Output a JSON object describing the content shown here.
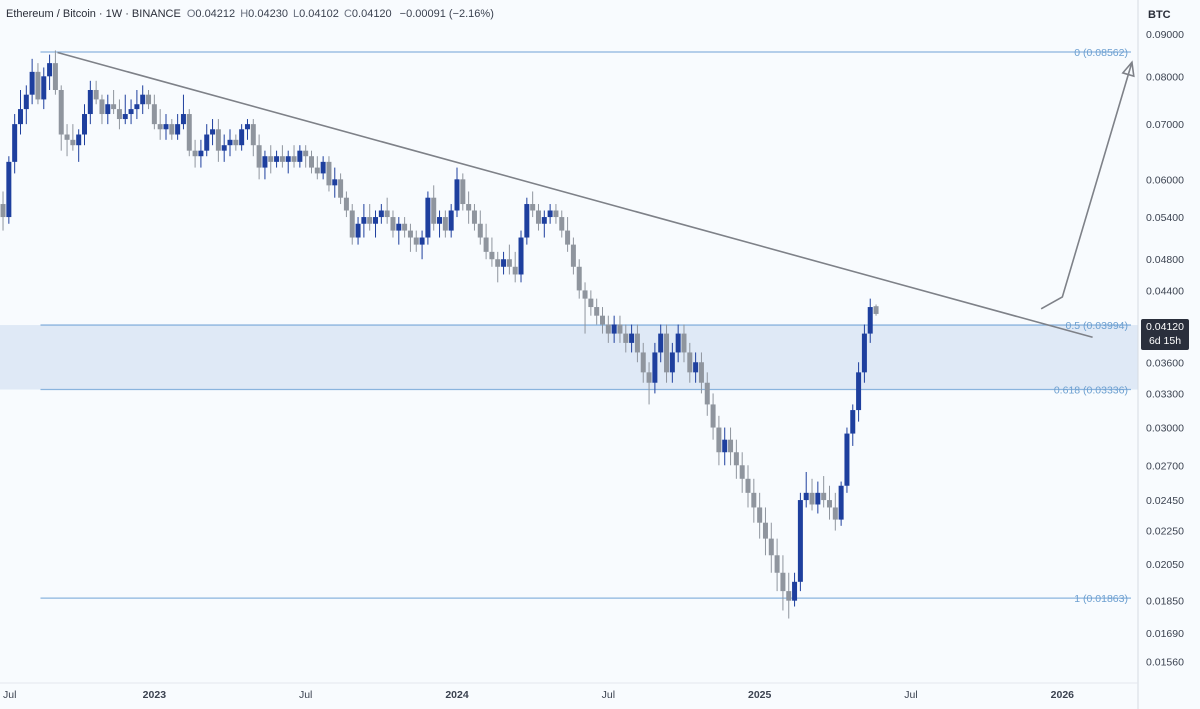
{
  "header": {
    "symbol": "Ethereum / Bitcoin · 1W · BINANCE",
    "open_label": "O",
    "open": "0.04212",
    "high_label": "H",
    "high": "0.04230",
    "low_label": "L",
    "low": "0.04102",
    "close_label": "C",
    "close": "0.04120",
    "change": "−0.00091 (−2.16%)"
  },
  "axis_title": "BTC",
  "price_badge": {
    "price": "0.04120",
    "countdown": "6d 15h"
  },
  "colors": {
    "up": "#1e3f9e",
    "down": "#8f959e",
    "fib": "#8ab4de",
    "zone": "#dfe9f6",
    "trend": "#7e8188"
  },
  "chart_data": {
    "type": "candlestick",
    "title": "Ethereum / Bitcoin · 1W · BINANCE",
    "ylabel": "BTC",
    "y_scale": "log",
    "ylim": [
      0.0147,
      0.099
    ],
    "xlim": [
      2022.49,
      2026.25
    ],
    "y_ticks": [
      "0.09000",
      "0.08000",
      "0.07000",
      "0.06000",
      "0.05400",
      "0.04800",
      "0.04400",
      "0.03600",
      "0.03300",
      "0.03000",
      "0.02700",
      "0.02450",
      "0.02250",
      "0.02050",
      "0.01850",
      "0.01690",
      "0.01560"
    ],
    "x_ticks": [
      {
        "label": "Jul",
        "t": 2022.5
      },
      {
        "label": "2023",
        "t": 2023.0
      },
      {
        "label": "Jul",
        "t": 2023.5
      },
      {
        "label": "2024",
        "t": 2024.0
      },
      {
        "label": "Jul",
        "t": 2024.5
      },
      {
        "label": "2025",
        "t": 2025.0
      },
      {
        "label": "Jul",
        "t": 2025.5
      },
      {
        "label": "2026",
        "t": 2026.0
      }
    ],
    "fib_levels": [
      {
        "label": "0 (0.08562)",
        "value": 0.08562
      },
      {
        "label": "0.5 (0.03994)",
        "value": 0.03994
      },
      {
        "label": "0.618 (0.03336)",
        "value": 0.03336
      },
      {
        "label": "1 (0.01863)",
        "value": 0.01863
      }
    ],
    "zone": [
      0.03336,
      0.03994
    ],
    "trendline": [
      [
        2022.68,
        0.0855
      ],
      [
        2026.1,
        0.0386
      ]
    ],
    "projection": [
      [
        2025.93,
        0.0418
      ],
      [
        2026.0,
        0.0432
      ],
      [
        2026.23,
        0.0832
      ]
    ],
    "candles_start": 2022.5,
    "candles_step": 0.01923,
    "candles": [
      [
        0.056,
        0.058,
        0.052,
        0.054
      ],
      [
        0.054,
        0.064,
        0.053,
        0.063
      ],
      [
        0.063,
        0.072,
        0.061,
        0.07
      ],
      [
        0.07,
        0.077,
        0.068,
        0.073
      ],
      [
        0.073,
        0.078,
        0.07,
        0.076
      ],
      [
        0.076,
        0.084,
        0.074,
        0.081
      ],
      [
        0.081,
        0.083,
        0.074,
        0.075
      ],
      [
        0.075,
        0.082,
        0.073,
        0.08
      ],
      [
        0.08,
        0.085,
        0.077,
        0.083
      ],
      [
        0.083,
        0.086,
        0.076,
        0.077
      ],
      [
        0.077,
        0.078,
        0.065,
        0.068
      ],
      [
        0.068,
        0.07,
        0.064,
        0.067
      ],
      [
        0.067,
        0.07,
        0.065,
        0.066
      ],
      [
        0.066,
        0.069,
        0.063,
        0.068
      ],
      [
        0.068,
        0.074,
        0.066,
        0.072
      ],
      [
        0.072,
        0.079,
        0.07,
        0.077
      ],
      [
        0.077,
        0.079,
        0.074,
        0.075
      ],
      [
        0.075,
        0.076,
        0.07,
        0.072
      ],
      [
        0.072,
        0.076,
        0.07,
        0.074
      ],
      [
        0.074,
        0.077,
        0.072,
        0.073
      ],
      [
        0.073,
        0.075,
        0.069,
        0.071
      ],
      [
        0.071,
        0.076,
        0.07,
        0.072
      ],
      [
        0.072,
        0.075,
        0.07,
        0.073
      ],
      [
        0.073,
        0.077,
        0.071,
        0.074
      ],
      [
        0.074,
        0.078,
        0.072,
        0.076
      ],
      [
        0.076,
        0.077,
        0.073,
        0.074
      ],
      [
        0.074,
        0.076,
        0.069,
        0.07
      ],
      [
        0.07,
        0.073,
        0.067,
        0.069
      ],
      [
        0.069,
        0.072,
        0.067,
        0.07
      ],
      [
        0.07,
        0.071,
        0.067,
        0.068
      ],
      [
        0.068,
        0.072,
        0.067,
        0.07
      ],
      [
        0.07,
        0.076,
        0.069,
        0.072
      ],
      [
        0.072,
        0.073,
        0.064,
        0.065
      ],
      [
        0.065,
        0.067,
        0.062,
        0.064
      ],
      [
        0.064,
        0.067,
        0.062,
        0.065
      ],
      [
        0.065,
        0.07,
        0.064,
        0.068
      ],
      [
        0.068,
        0.071,
        0.066,
        0.069
      ],
      [
        0.069,
        0.071,
        0.063,
        0.065
      ],
      [
        0.065,
        0.068,
        0.063,
        0.066
      ],
      [
        0.066,
        0.069,
        0.064,
        0.067
      ],
      [
        0.067,
        0.068,
        0.065,
        0.066
      ],
      [
        0.066,
        0.07,
        0.065,
        0.069
      ],
      [
        0.069,
        0.071,
        0.067,
        0.07
      ],
      [
        0.07,
        0.071,
        0.064,
        0.066
      ],
      [
        0.066,
        0.068,
        0.06,
        0.062
      ],
      [
        0.062,
        0.065,
        0.06,
        0.064
      ],
      [
        0.064,
        0.066,
        0.061,
        0.063
      ],
      [
        0.063,
        0.065,
        0.062,
        0.064
      ],
      [
        0.064,
        0.066,
        0.062,
        0.063
      ],
      [
        0.063,
        0.065,
        0.061,
        0.064
      ],
      [
        0.064,
        0.066,
        0.062,
        0.063
      ],
      [
        0.063,
        0.066,
        0.062,
        0.065
      ],
      [
        0.065,
        0.066,
        0.062,
        0.064
      ],
      [
        0.064,
        0.065,
        0.061,
        0.062
      ],
      [
        0.062,
        0.064,
        0.06,
        0.061
      ],
      [
        0.061,
        0.064,
        0.06,
        0.063
      ],
      [
        0.063,
        0.064,
        0.058,
        0.059
      ],
      [
        0.059,
        0.062,
        0.057,
        0.06
      ],
      [
        0.06,
        0.061,
        0.056,
        0.057
      ],
      [
        0.057,
        0.058,
        0.054,
        0.055
      ],
      [
        0.055,
        0.056,
        0.05,
        0.051
      ],
      [
        0.051,
        0.054,
        0.05,
        0.053
      ],
      [
        0.053,
        0.056,
        0.051,
        0.054
      ],
      [
        0.054,
        0.056,
        0.052,
        0.053
      ],
      [
        0.053,
        0.055,
        0.051,
        0.054
      ],
      [
        0.054,
        0.056,
        0.053,
        0.055
      ],
      [
        0.055,
        0.057,
        0.053,
        0.054
      ],
      [
        0.054,
        0.055,
        0.051,
        0.052
      ],
      [
        0.052,
        0.054,
        0.05,
        0.053
      ],
      [
        0.053,
        0.054,
        0.051,
        0.052
      ],
      [
        0.052,
        0.053,
        0.049,
        0.051
      ],
      [
        0.051,
        0.052,
        0.049,
        0.05
      ],
      [
        0.05,
        0.052,
        0.048,
        0.051
      ],
      [
        0.051,
        0.058,
        0.05,
        0.057
      ],
      [
        0.057,
        0.059,
        0.052,
        0.053
      ],
      [
        0.053,
        0.055,
        0.051,
        0.054
      ],
      [
        0.054,
        0.055,
        0.051,
        0.052
      ],
      [
        0.052,
        0.056,
        0.051,
        0.055
      ],
      [
        0.055,
        0.062,
        0.054,
        0.06
      ],
      [
        0.06,
        0.061,
        0.055,
        0.056
      ],
      [
        0.056,
        0.058,
        0.053,
        0.055
      ],
      [
        0.055,
        0.056,
        0.052,
        0.053
      ],
      [
        0.053,
        0.055,
        0.05,
        0.051
      ],
      [
        0.051,
        0.053,
        0.048,
        0.049
      ],
      [
        0.049,
        0.051,
        0.047,
        0.048
      ],
      [
        0.048,
        0.049,
        0.045,
        0.047
      ],
      [
        0.047,
        0.049,
        0.046,
        0.048
      ],
      [
        0.048,
        0.05,
        0.046,
        0.047
      ],
      [
        0.047,
        0.049,
        0.045,
        0.046
      ],
      [
        0.046,
        0.052,
        0.045,
        0.051
      ],
      [
        0.051,
        0.057,
        0.05,
        0.056
      ],
      [
        0.056,
        0.058,
        0.054,
        0.055
      ],
      [
        0.055,
        0.056,
        0.052,
        0.053
      ],
      [
        0.053,
        0.055,
        0.051,
        0.054
      ],
      [
        0.054,
        0.056,
        0.053,
        0.055
      ],
      [
        0.055,
        0.056,
        0.053,
        0.054
      ],
      [
        0.054,
        0.055,
        0.051,
        0.052
      ],
      [
        0.052,
        0.054,
        0.049,
        0.05
      ],
      [
        0.05,
        0.051,
        0.046,
        0.047
      ],
      [
        0.047,
        0.048,
        0.043,
        0.044
      ],
      [
        0.044,
        0.045,
        0.039,
        0.043
      ],
      [
        0.043,
        0.044,
        0.041,
        0.042
      ],
      [
        0.042,
        0.043,
        0.04,
        0.041
      ],
      [
        0.041,
        0.042,
        0.039,
        0.04
      ],
      [
        0.04,
        0.041,
        0.038,
        0.039
      ],
      [
        0.039,
        0.041,
        0.038,
        0.04
      ],
      [
        0.04,
        0.041,
        0.038,
        0.039
      ],
      [
        0.039,
        0.04,
        0.037,
        0.038
      ],
      [
        0.038,
        0.04,
        0.037,
        0.039
      ],
      [
        0.039,
        0.04,
        0.036,
        0.037
      ],
      [
        0.037,
        0.038,
        0.034,
        0.035
      ],
      [
        0.035,
        0.036,
        0.032,
        0.034
      ],
      [
        0.034,
        0.038,
        0.033,
        0.037
      ],
      [
        0.037,
        0.04,
        0.036,
        0.039
      ],
      [
        0.039,
        0.04,
        0.034,
        0.035
      ],
      [
        0.035,
        0.038,
        0.034,
        0.037
      ],
      [
        0.037,
        0.04,
        0.036,
        0.039
      ],
      [
        0.039,
        0.04,
        0.036,
        0.037
      ],
      [
        0.037,
        0.038,
        0.034,
        0.035
      ],
      [
        0.035,
        0.037,
        0.034,
        0.036
      ],
      [
        0.036,
        0.037,
        0.033,
        0.034
      ],
      [
        0.034,
        0.035,
        0.031,
        0.032
      ],
      [
        0.032,
        0.033,
        0.029,
        0.03
      ],
      [
        0.03,
        0.031,
        0.027,
        0.028
      ],
      [
        0.028,
        0.03,
        0.027,
        0.029
      ],
      [
        0.029,
        0.03,
        0.027,
        0.028
      ],
      [
        0.028,
        0.029,
        0.026,
        0.027
      ],
      [
        0.027,
        0.028,
        0.025,
        0.026
      ],
      [
        0.026,
        0.027,
        0.024,
        0.025
      ],
      [
        0.025,
        0.026,
        0.023,
        0.024
      ],
      [
        0.024,
        0.025,
        0.022,
        0.023
      ],
      [
        0.023,
        0.024,
        0.021,
        0.022
      ],
      [
        0.022,
        0.023,
        0.02,
        0.021
      ],
      [
        0.021,
        0.022,
        0.019,
        0.02
      ],
      [
        0.02,
        0.021,
        0.018,
        0.019
      ],
      [
        0.019,
        0.02,
        0.0176,
        0.0185
      ],
      [
        0.0185,
        0.02,
        0.0182,
        0.0195
      ],
      [
        0.0195,
        0.025,
        0.019,
        0.0245
      ],
      [
        0.0245,
        0.0265,
        0.024,
        0.025
      ],
      [
        0.025,
        0.026,
        0.0238,
        0.0242
      ],
      [
        0.0242,
        0.0258,
        0.0236,
        0.025
      ],
      [
        0.025,
        0.0262,
        0.024,
        0.0245
      ],
      [
        0.0245,
        0.0255,
        0.0232,
        0.024
      ],
      [
        0.024,
        0.025,
        0.0225,
        0.0232
      ],
      [
        0.0232,
        0.0258,
        0.0228,
        0.0255
      ],
      [
        0.0255,
        0.03,
        0.025,
        0.0295
      ],
      [
        0.0295,
        0.032,
        0.0285,
        0.0315
      ],
      [
        0.0315,
        0.036,
        0.0305,
        0.035
      ],
      [
        0.035,
        0.04,
        0.034,
        0.039
      ],
      [
        0.039,
        0.043,
        0.038,
        0.042
      ],
      [
        0.0421,
        0.0423,
        0.041,
        0.0412
      ]
    ]
  }
}
